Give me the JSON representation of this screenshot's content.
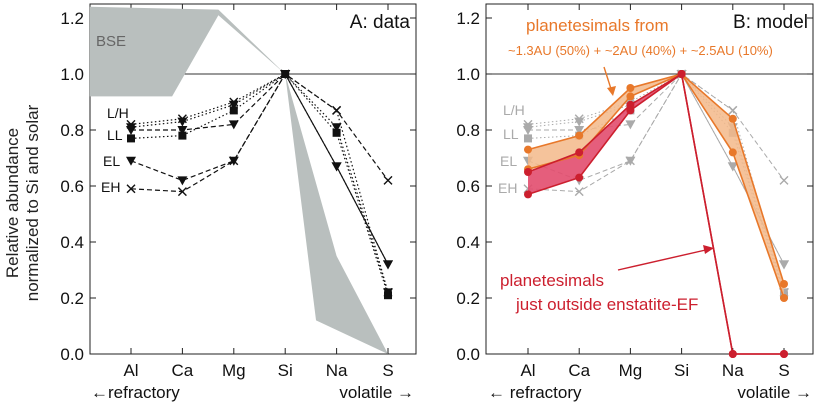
{
  "figure": {
    "ylabel_line1": "Relative abundance",
    "ylabel_line2": "normalized to Si and solar",
    "xaxis_left_label": "←refractory",
    "xaxis_right_label": "volatile →",
    "xaxis_left_label_b": "← refractory"
  },
  "chart_data": [
    {
      "type": "line",
      "panel": "A",
      "title": "A: data",
      "xlabel": "",
      "ylabel": "Relative abundance normalized to Si and solar",
      "categories": [
        "Al",
        "Ca",
        "Mg",
        "Si",
        "Na",
        "S"
      ],
      "ylim": [
        0.0,
        1.25
      ],
      "yticks": [
        0.0,
        0.2,
        0.4,
        0.6,
        0.8,
        1.0,
        1.2
      ],
      "ytick_labels": [
        "0.0",
        "0.2",
        "0.4",
        "0.6",
        "0.8",
        "1.0",
        "1.2"
      ],
      "reference_line": 1.0,
      "bse_label": "BSE",
      "bse_band": {
        "x_lower": [
          -0.8,
          0.8,
          1.7,
          3.0,
          3.6,
          5.0
        ],
        "lower": [
          0.92,
          0.92,
          1.21,
          1.0,
          0.12,
          0.0
        ],
        "x_upper": [
          -0.8,
          1.7,
          3.0,
          4.0,
          5.0
        ],
        "upper": [
          1.24,
          1.23,
          1.0,
          0.35,
          0.0
        ]
      },
      "series": [
        {
          "name": "L/H",
          "marker": "triangle-down",
          "style": "dotted",
          "values": [
            0.81,
            0.83,
            0.89,
            1.0,
            0.81,
            0.22
          ]
        },
        {
          "name": "LL",
          "marker": "square",
          "style": "dotted",
          "values": [
            0.77,
            0.78,
            0.87,
            1.0,
            0.79,
            0.21
          ]
        },
        {
          "name": "",
          "marker": "x",
          "style": "dotted",
          "values": [
            0.82,
            0.84,
            0.9,
            1.0,
            0.87,
            0.22
          ]
        },
        {
          "name": "",
          "marker": "triangle-down",
          "style": "dashed",
          "values": [
            0.8,
            0.8,
            0.82,
            1.0,
            0.67,
            0.32
          ]
        },
        {
          "name": "EL",
          "marker": "triangle-down",
          "style": "dashed",
          "values": [
            0.69,
            0.62,
            0.69,
            1.0,
            0.67,
            0.32
          ]
        },
        {
          "name": "EH",
          "marker": "x",
          "style": "dashed",
          "values": [
            0.59,
            0.58,
            0.69,
            1.0,
            0.87,
            0.62
          ]
        }
      ]
    },
    {
      "type": "line",
      "panel": "B",
      "title": "B: model",
      "xlabel": "",
      "ylabel": "",
      "categories": [
        "Al",
        "Ca",
        "Mg",
        "Si",
        "Na",
        "S"
      ],
      "ylim": [
        0.0,
        1.25
      ],
      "yticks": [
        0.0,
        0.2,
        0.4,
        0.6,
        0.8,
        1.0,
        1.2
      ],
      "ytick_labels": [
        "0.0",
        "0.2",
        "0.4",
        "0.6",
        "0.8",
        "1.0",
        "1.2"
      ],
      "reference_line": 1.0,
      "background_series_labels": [
        "L/H",
        "LL",
        "EL",
        "EH"
      ],
      "annotation_orange_line1": "planetesimals from",
      "annotation_orange_line2": "~1.3AU (50%) + ~2AU (40%) + ~2.5AU (10%)",
      "annotation_red_line1": "planetesimals",
      "annotation_red_line2": "just outside enstatite-EF",
      "colors": {
        "orange": "#e8782a",
        "orange_fill": "#f3b98a",
        "red": "#cc1f2e",
        "red_fill": "#e24d6e",
        "gray": "#9a9a9a"
      },
      "series": [
        {
          "name": "model orange upper",
          "values": [
            0.73,
            0.78,
            0.95,
            1.0,
            0.84,
            0.25
          ]
        },
        {
          "name": "model orange lower",
          "values": [
            0.66,
            0.71,
            0.92,
            1.0,
            0.72,
            0.2
          ]
        },
        {
          "name": "model red upper",
          "values": [
            0.65,
            0.72,
            0.89,
            1.0,
            0.0,
            0.0
          ]
        },
        {
          "name": "model red lower",
          "values": [
            0.57,
            0.63,
            0.87,
            1.0,
            0.0,
            0.0
          ]
        }
      ]
    }
  ]
}
